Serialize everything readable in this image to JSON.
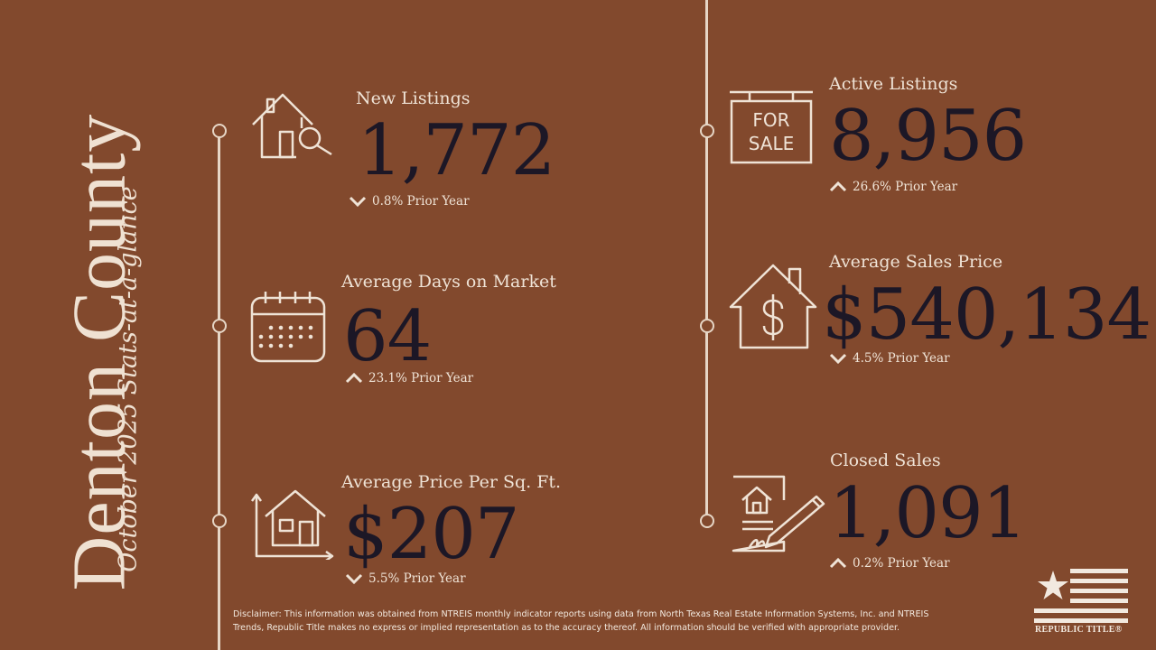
{
  "title": "Denton County",
  "subtitle": "October 2025 Stats-at-a-glance",
  "stats": [
    {
      "label": "New Listings",
      "value": "1,772",
      "change": "0.8% Prior Year",
      "direction": "down",
      "icon": "house-search-icon"
    },
    {
      "label": "Average Days on Market",
      "value": "64",
      "change": "23.1% Prior Year",
      "direction": "up",
      "icon": "calendar-icon"
    },
    {
      "label": "Average Price Per Sq. Ft.",
      "value": "$207",
      "change": "5.5% Prior Year",
      "direction": "down",
      "icon": "house-dimensions-icon"
    },
    {
      "label": "Active Listings",
      "value": "8,956",
      "change": "26.6% Prior Year",
      "direction": "up",
      "icon": "for-sale-sign-icon"
    },
    {
      "label": "Average Sales Price",
      "value": "$540,134",
      "change": "4.5% Prior Year",
      "direction": "down",
      "icon": "house-dollar-icon"
    },
    {
      "label": "Closed Sales",
      "value": "1,091",
      "change": "0.2% Prior Year",
      "direction": "up",
      "icon": "contract-signing-icon"
    }
  ],
  "for_sale_sign": {
    "line1": "FOR",
    "line2": "SALE"
  },
  "disclaimer": "Disclaimer: This information was obtained from NTREIS monthly indicator reports using data from North Texas Real Estate Information Systems, Inc. and NTREIS Trends, Republic Title makes no express or implied representation as to the accuracy thereof. All information should be verified with appropriate provider.",
  "logo": {
    "text": "REPUBLIC TITLE®",
    "icon": "republic-title-flag-logo"
  },
  "colors": {
    "background": "#82492d",
    "value_text": "#1c1726",
    "light_text": "#efe3d6"
  }
}
